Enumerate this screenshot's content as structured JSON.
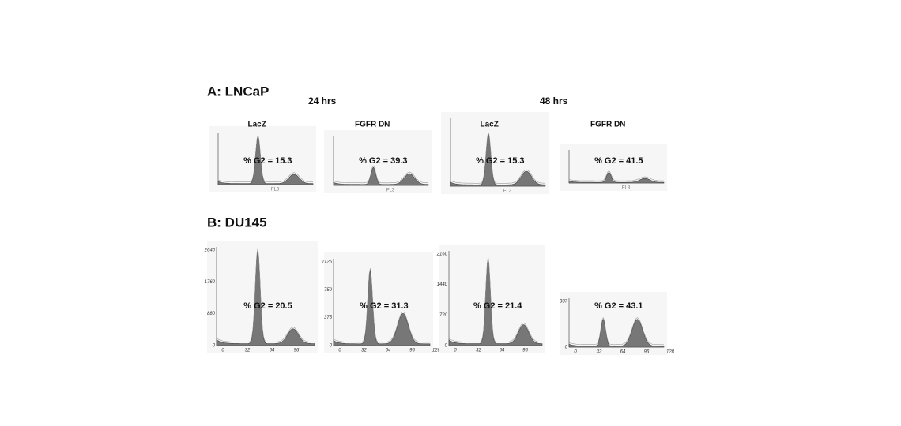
{
  "timepoints": [
    "24 hrs",
    "48 hrs"
  ],
  "sections": [
    {
      "title": "A: LNCaP",
      "panels": [
        {
          "label": "LacZ",
          "g2": "% G2 = 15.3",
          "xlabel": "FL3",
          "yticks": [],
          "xticks": []
        },
        {
          "label": "FGFR DN",
          "g2": "% G2 = 39.3",
          "xlabel": "FL3",
          "yticks": [],
          "xticks": []
        },
        {
          "label": "LacZ",
          "g2": "% G2 = 15.3",
          "xlabel": "FL3",
          "yticks": [],
          "xticks": []
        },
        {
          "label": "FGFR DN",
          "g2": "% G2 = 41.5",
          "xlabel": "FL3",
          "yticks": [],
          "xticks": []
        }
      ]
    },
    {
      "title": "B: DU145",
      "panels": [
        {
          "g2": "% G2 = 20.5",
          "yticks": [
            "2640",
            "1760",
            "880",
            "0"
          ],
          "xticks": [
            "0",
            "32",
            "64",
            "96"
          ]
        },
        {
          "g2": "% G2 = 31.3",
          "yticks": [
            "1125",
            "750",
            "375",
            "0"
          ],
          "xticks": [
            "0",
            "32",
            "64",
            "96",
            "128"
          ]
        },
        {
          "g2": "% G2 = 21.4",
          "yticks": [
            "2160",
            "1440",
            "720",
            "0"
          ],
          "xticks": [
            "0",
            "32",
            "64",
            "96"
          ]
        },
        {
          "g2": "% G2 = 43.1",
          "yticks": [
            "337",
            "0"
          ],
          "xticks": [
            "0",
            "32",
            "64",
            "96",
            "128"
          ]
        }
      ]
    }
  ]
}
